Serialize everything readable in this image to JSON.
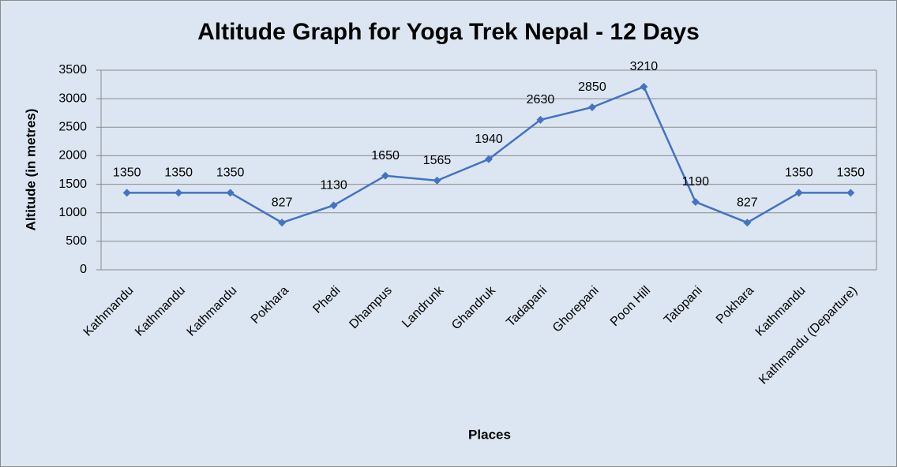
{
  "chart_data": {
    "type": "line",
    "title": "Altitude Graph for Yoga Trek Nepal - 12 Days",
    "x_label": "Places",
    "y_label": "Altitude (in metres)",
    "categories": [
      "Kathmandu",
      "Kathmandu",
      "Kathmandu",
      "Pokhara",
      "Phedi",
      "Dhampus",
      "Landrunk",
      "Ghandruk",
      "Tadapani",
      "Ghorepani",
      "Poon Hill",
      "Tatopani",
      "Pokhara",
      "Kathmandu",
      "Kathmandu (Departure)"
    ],
    "values": [
      1350,
      1350,
      1350,
      827,
      1130,
      1650,
      1565,
      1940,
      2630,
      2850,
      3210,
      1190,
      827,
      1350,
      1350
    ],
    "color": "#4472c4",
    "ylim": [
      0,
      3500
    ],
    "yticks": [
      0,
      500,
      1000,
      1500,
      2000,
      2500,
      3000,
      3500
    ],
    "grid": true
  }
}
